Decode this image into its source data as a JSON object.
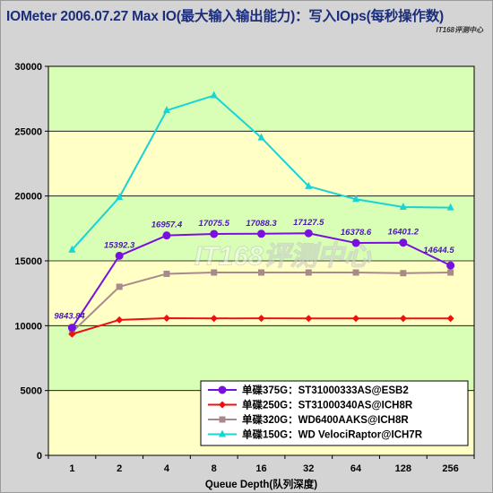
{
  "title": "IOMeter 2006.07.27 Max IO(最大输入输出能力)：写入IOps(每秒操作数)",
  "watermark_small": "IT168评测中心",
  "watermark_big": "IT168评测中心",
  "chart_data": {
    "type": "line",
    "xlabel": "Queue Depth(队列深度)",
    "ylabel": "",
    "categories": [
      "1",
      "2",
      "4",
      "8",
      "16",
      "32",
      "64",
      "128",
      "256"
    ],
    "ylim": [
      0,
      30000
    ],
    "yticks": [
      0,
      5000,
      10000,
      15000,
      20000,
      25000,
      30000
    ],
    "grid": true,
    "band_colors": [
      "#ffffc6",
      "#d9ffb6"
    ],
    "legend_position": "bottom-right",
    "series": [
      {
        "name": "单碟375G：ST31000333AS@ESB2",
        "color": "#7a10e0",
        "marker": "circle",
        "values": [
          9843.84,
          15392.3,
          16957.4,
          17075.5,
          17088.3,
          17127.5,
          16378.6,
          16401.2,
          14644.5
        ],
        "labels": [
          "9843.84",
          "15392.3",
          "16957.4",
          "17075.5",
          "17088.3",
          "17127.5",
          "16378.6",
          "16401.2",
          "14644.5"
        ]
      },
      {
        "name": "单碟250G：ST31000340AS@ICH8R",
        "color": "#ee1010",
        "marker": "diamond",
        "values": [
          9350,
          10450,
          10580,
          10560,
          10570,
          10560,
          10560,
          10560,
          10560
        ]
      },
      {
        "name": "单碟320G：WD6400AAKS@ICH8R",
        "color": "#a88a8c",
        "marker": "square",
        "values": [
          9500,
          13000,
          14000,
          14100,
          14100,
          14100,
          14100,
          14050,
          14100
        ]
      },
      {
        "name": "单碟150G：WD VelociRaptor@ICH7R",
        "color": "#18d4d4",
        "marker": "triangle",
        "values": [
          15850,
          19900,
          26600,
          27750,
          24500,
          20750,
          19750,
          19150,
          19100
        ]
      }
    ]
  }
}
